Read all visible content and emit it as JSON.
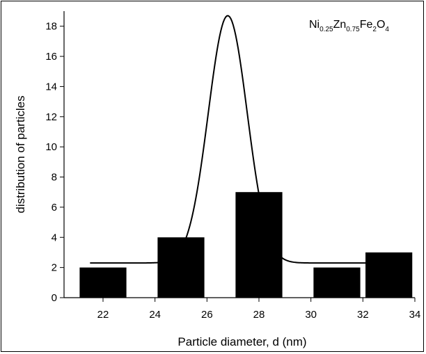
{
  "chart_data": {
    "type": "bar",
    "annotation": {
      "parts": [
        {
          "text": "Ni",
          "sub": false
        },
        {
          "text": "0.25",
          "sub": true
        },
        {
          "text": "Zn",
          "sub": false
        },
        {
          "text": "0.75",
          "sub": true
        },
        {
          "text": "Fe",
          "sub": false
        },
        {
          "text": "2",
          "sub": true
        },
        {
          "text": "O",
          "sub": false
        },
        {
          "text": "4",
          "sub": true
        }
      ]
    },
    "xlabel": "Particle diameter, d (nm)",
    "ylabel": "distribution of particles",
    "xlim": [
      20.5,
      34
    ],
    "ylim": [
      0,
      19
    ],
    "xticks": [
      22,
      24,
      26,
      28,
      30,
      32,
      34
    ],
    "yticks": [
      0,
      2,
      4,
      6,
      8,
      10,
      12,
      14,
      16,
      18
    ],
    "bar_width": 1.8,
    "bars": [
      {
        "x": 22,
        "value": 2
      },
      {
        "x": 25,
        "value": 4
      },
      {
        "x": 28,
        "value": 7
      },
      {
        "x": 31,
        "value": 2
      },
      {
        "x": 33,
        "value": 3
      }
    ],
    "fit_curve": {
      "type": "gaussian",
      "baseline": 2.3,
      "amplitude": 16.4,
      "center": 26.8,
      "sigma": 0.75,
      "x_range": [
        21.5,
        33
      ]
    },
    "colors": {
      "bars": "#000000",
      "curve": "#000000"
    }
  }
}
